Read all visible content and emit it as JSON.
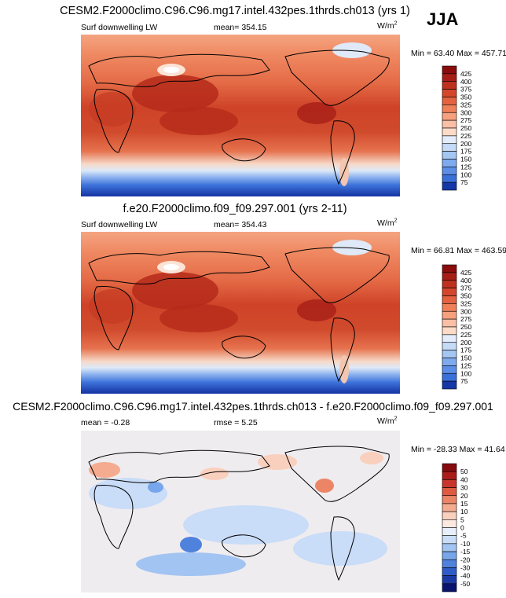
{
  "season": "JJA",
  "colors": {
    "warm": [
      "#fff4ee",
      "#fddbc7",
      "#fbbfa6",
      "#f6a07e",
      "#ef8058",
      "#e46240",
      "#d4472c",
      "#be311f",
      "#a61e16",
      "#8a0c0c"
    ],
    "cool": [
      "#e2ecfa",
      "#c6dbf7",
      "#a4c6f3",
      "#7eaaee",
      "#5b8ee6",
      "#3a70da",
      "#2252c5",
      "#1438a8",
      "#0b2388"
    ],
    "diff": [
      "#08146e",
      "#1b3aa6",
      "#2e5cc8",
      "#4f82dd",
      "#77a6eb",
      "#a2c4f2",
      "#c9dcf8",
      "#e6effb",
      "#fbe9e0",
      "#f9cfbd",
      "#f4ab90",
      "#ec8566",
      "#de5a40",
      "#c8352a",
      "#aa1c1a",
      "#86090e"
    ]
  },
  "panels": [
    {
      "title": "CESM2.F2000climo.C96.C96.mg17.intel.432pes.1thrds.ch013 (yrs 1)",
      "left_label": "Surf downwelling LW",
      "mid_label": "mean= 354.15",
      "units": "W/m",
      "units_sup": "2",
      "minmax": "Min =  63.40 Max = 457.71",
      "colorbar": [
        "425",
        "400",
        "375",
        "350",
        "325",
        "300",
        "275",
        "250",
        "225",
        "200",
        "175",
        "150",
        "125",
        "100",
        "75"
      ]
    },
    {
      "title": "f.e20.F2000climo.f09_f09.297.001 (yrs 2-11)",
      "left_label": "Surf downwelling LW",
      "mid_label": "mean= 354.43",
      "units": "W/m",
      "units_sup": "2",
      "minmax": "Min =  66.81 Max = 463.59",
      "colorbar": [
        "425",
        "400",
        "375",
        "350",
        "325",
        "300",
        "275",
        "250",
        "225",
        "200",
        "175",
        "150",
        "125",
        "100",
        "75"
      ]
    },
    {
      "title": "CESM2.F2000climo.C96.C96.mg17.intel.432pes.1thrds.ch013 - f.e20.F2000climo.f09_f09.297.001",
      "left_label": "mean =  -0.28",
      "mid_label": "rmse =   5.25",
      "units": "W/m",
      "units_sup": "2",
      "minmax": "Min = -28.33 Max =  41.64",
      "colorbar": [
        "50",
        "40",
        "30",
        "20",
        "15",
        "10",
        "5",
        "0",
        "-5",
        "-10",
        "-15",
        "-20",
        "-30",
        "-40",
        "-50"
      ]
    }
  ],
  "chart_data": [
    {
      "type": "heatmap",
      "title": "CESM2.F2000climo.C96.C96.mg17.intel.432pes.1thrds.ch013 (yrs 1)",
      "variable": "Surf downwelling LW",
      "units": "W/m2",
      "mean": 354.15,
      "min": 63.4,
      "max": 457.71,
      "contour_levels": [
        75,
        100,
        125,
        150,
        175,
        200,
        225,
        250,
        275,
        300,
        325,
        350,
        375,
        400,
        425
      ]
    },
    {
      "type": "heatmap",
      "title": "f.e20.F2000climo.f09_f09.297.001 (yrs 2-11)",
      "variable": "Surf downwelling LW",
      "units": "W/m2",
      "mean": 354.43,
      "min": 66.81,
      "max": 463.59,
      "contour_levels": [
        75,
        100,
        125,
        150,
        175,
        200,
        225,
        250,
        275,
        300,
        325,
        350,
        375,
        400,
        425
      ]
    },
    {
      "type": "heatmap",
      "title": "CESM2.F2000climo.C96.C96.mg17.intel.432pes.1thrds.ch013 - f.e20.F2000climo.f09_f09.297.001",
      "units": "W/m2",
      "mean": -0.28,
      "rmse": 5.25,
      "min": -28.33,
      "max": 41.64,
      "contour_levels": [
        -50,
        -40,
        -30,
        -20,
        -15,
        -10,
        -5,
        0,
        5,
        10,
        15,
        20,
        30,
        40,
        50
      ]
    }
  ]
}
